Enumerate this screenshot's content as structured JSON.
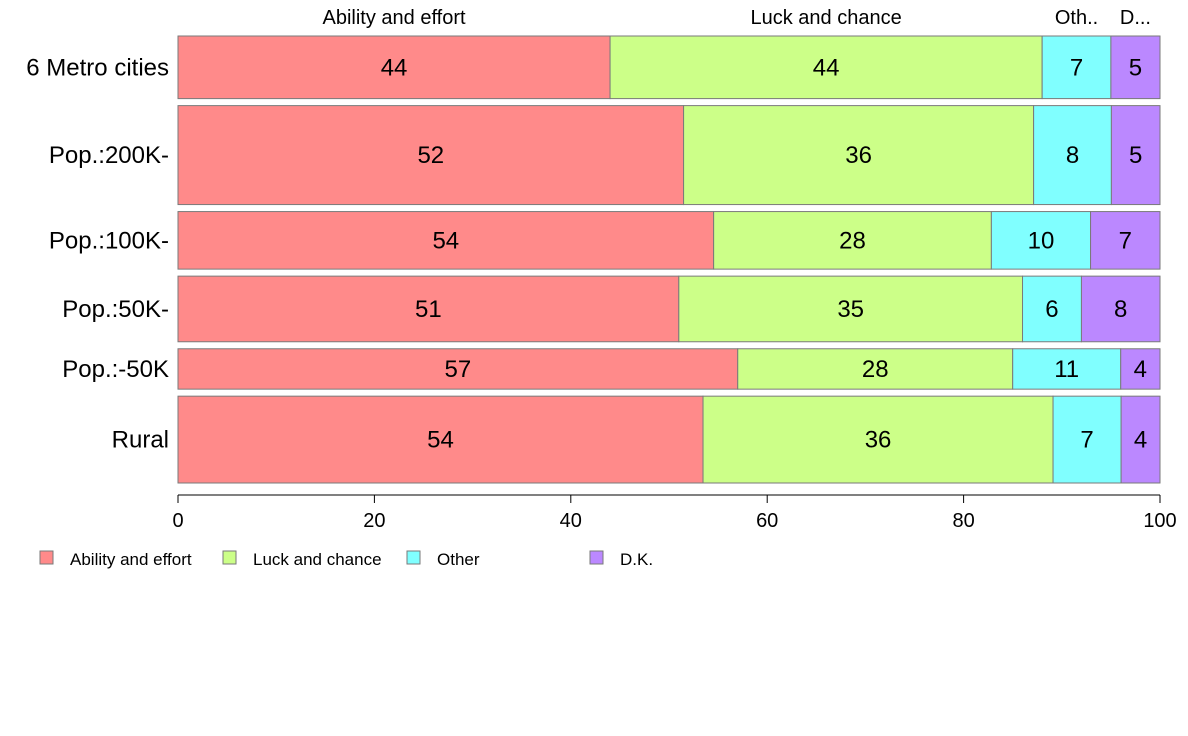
{
  "chart_data": {
    "type": "bar",
    "orientation": "horizontal",
    "stacked": true,
    "variable_width": true,
    "title": "",
    "xlabel": "",
    "ylabel": "",
    "xlim": [
      0,
      100
    ],
    "x_ticks": [
      "0",
      "20",
      "40",
      "60",
      "80",
      "100"
    ],
    "grid": false,
    "legend_position": "bottom-left",
    "categories": [
      "6 Metro cities",
      "Pop.:200K-",
      "Pop.:100K-",
      "Pop.:50K-",
      "Pop.:-50K",
      "Rural"
    ],
    "row_weights": [
      62,
      98,
      57,
      65,
      40,
      86
    ],
    "top_labels": [
      "Ability and effort",
      "Luck and chance",
      "Oth..",
      "D..."
    ],
    "series": [
      {
        "name": "Ability and effort",
        "color": "#FF8A8A",
        "values": [
          44,
          52,
          54,
          51,
          57,
          54
        ],
        "labels": [
          "44",
          "52",
          "54",
          "51",
          "57",
          "54"
        ]
      },
      {
        "name": "Luck and chance",
        "color": "#CCFF88",
        "values": [
          44,
          36,
          28,
          35,
          28,
          36
        ],
        "labels": [
          "44",
          "36",
          "28",
          "35",
          "28",
          "36"
        ]
      },
      {
        "name": "Other",
        "color": "#80FFFF",
        "values": [
          7,
          8,
          10,
          6,
          11,
          7
        ],
        "labels": [
          "7",
          "8",
          "10",
          "6",
          "11",
          "7"
        ]
      },
      {
        "name": "D.K.",
        "color": "#BB88FF",
        "values": [
          5,
          5,
          7,
          8,
          4,
          4
        ],
        "labels": [
          "5",
          "5",
          "7",
          "8",
          "4",
          "4"
        ]
      }
    ]
  }
}
